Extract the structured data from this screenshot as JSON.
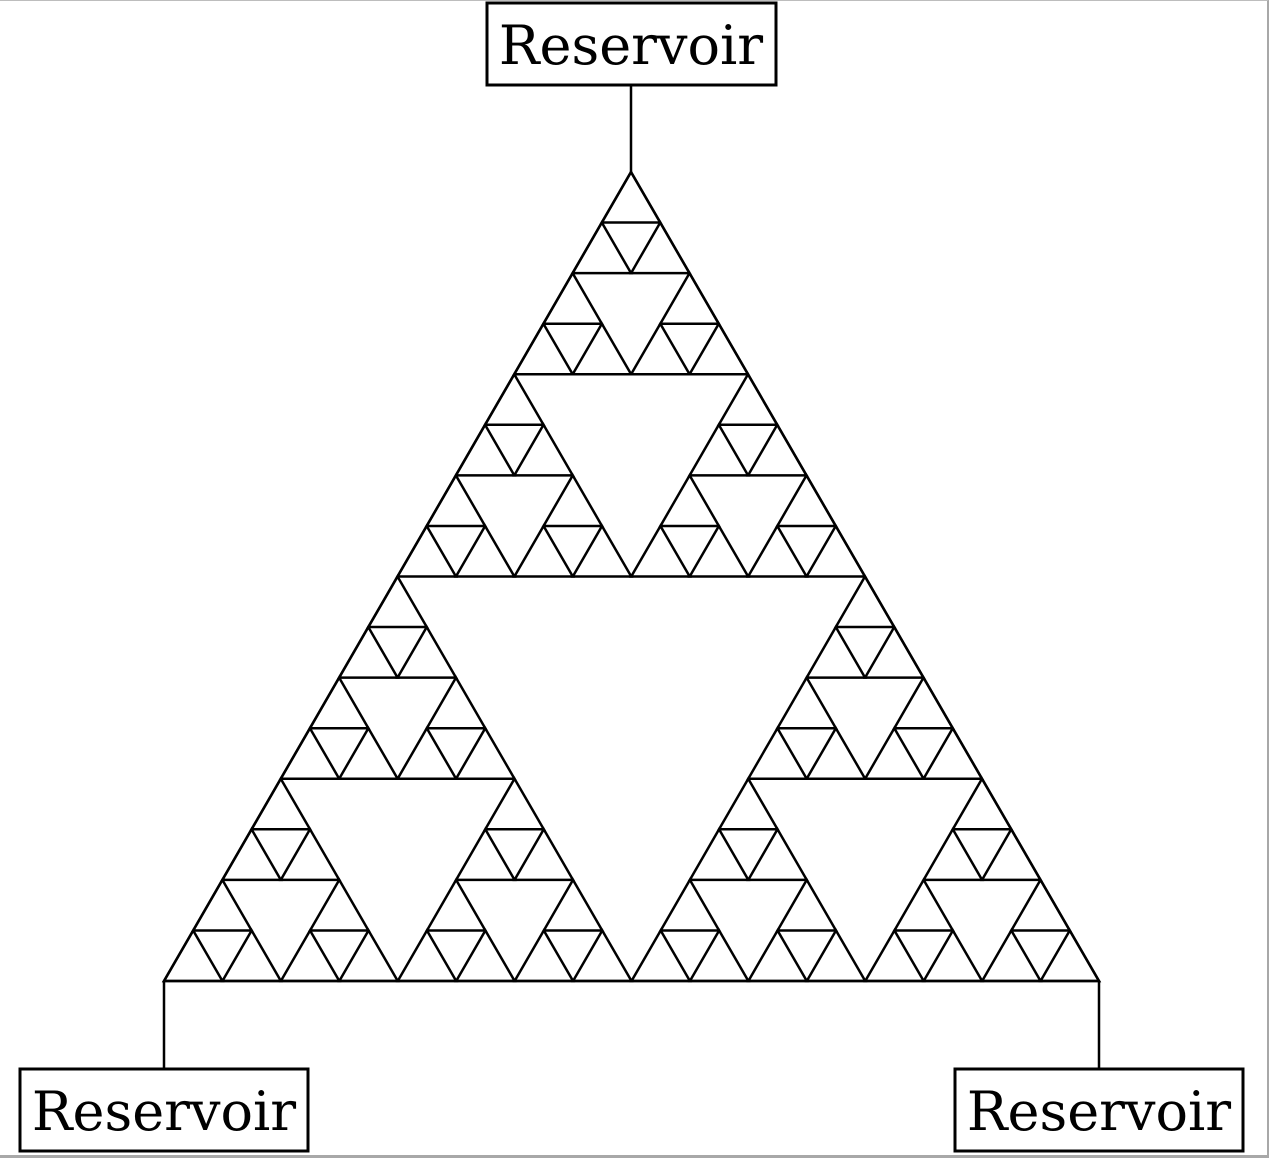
{
  "reservoirs": {
    "top": {
      "label": "Reservoir"
    },
    "bottom_left": {
      "label": "Reservoir"
    },
    "bottom_right": {
      "label": "Reservoir"
    }
  },
  "gasket": {
    "levels": 4
  },
  "colors": {
    "stroke": "#000000",
    "background": "#ffffff"
  }
}
